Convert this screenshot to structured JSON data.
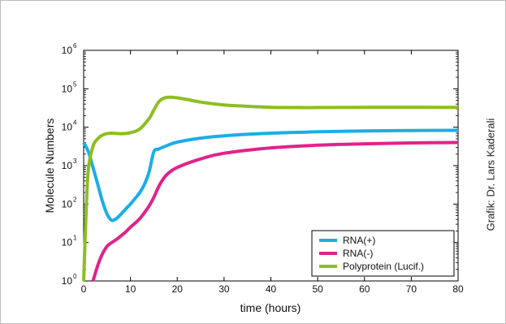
{
  "chart_data": {
    "type": "line",
    "xlabel": "time (hours)",
    "ylabel": "Molecule Numbers",
    "xlim": [
      0,
      80
    ],
    "ylim": [
      1,
      1000000
    ],
    "y_scale": "log",
    "x_ticks": [
      0,
      10,
      20,
      30,
      40,
      50,
      60,
      70,
      80
    ],
    "y_tick_exponents": [
      0,
      1,
      2,
      3,
      4,
      5,
      6
    ],
    "y_tick_base": "10",
    "grid": false,
    "legend_position": "lower-right",
    "series": [
      {
        "name": "RNA(+)",
        "color": "#1aaee6",
        "x": [
          0,
          1,
          2,
          3,
          4,
          5,
          6,
          7,
          8,
          9,
          10,
          11,
          12,
          13,
          14,
          15,
          16,
          18,
          20,
          25,
          30,
          40,
          50,
          60,
          70,
          80
        ],
        "y": [
          4000,
          2300,
          900,
          330,
          120,
          55,
          38,
          42,
          55,
          75,
          100,
          140,
          200,
          330,
          700,
          2300,
          2700,
          3400,
          4100,
          5200,
          6000,
          7000,
          7600,
          8000,
          8200,
          8300
        ]
      },
      {
        "name": "RNA(-)",
        "color": "#e0238a",
        "x": [
          2,
          3,
          4,
          5,
          6,
          7,
          8,
          9,
          10,
          11,
          12,
          13,
          14,
          15,
          16,
          17,
          18,
          20,
          25,
          30,
          40,
          50,
          60,
          70,
          80
        ],
        "y": [
          1,
          2.5,
          5,
          8,
          10,
          12,
          15,
          19,
          25,
          32,
          42,
          60,
          90,
          150,
          280,
          450,
          620,
          900,
          1500,
          2100,
          2900,
          3400,
          3700,
          3900,
          4000
        ]
      },
      {
        "name": "Polyprotein (Lucif.)",
        "color": "#8cbf1f",
        "x": [
          0,
          0.5,
          1,
          2,
          3,
          4,
          5,
          6,
          8,
          10,
          12,
          14,
          15,
          16,
          17,
          18,
          19,
          20,
          22,
          25,
          30,
          35,
          40,
          45,
          50,
          60,
          70,
          80
        ],
        "y": [
          1,
          50,
          800,
          3200,
          5000,
          6200,
          6800,
          7000,
          6800,
          7200,
          9000,
          17000,
          28000,
          45000,
          56000,
          60000,
          60000,
          58000,
          53000,
          45000,
          38000,
          35000,
          33000,
          32500,
          32500,
          33000,
          33000,
          32800
        ]
      }
    ]
  },
  "credit": "Grafik: Dr. Lars Kaderali"
}
